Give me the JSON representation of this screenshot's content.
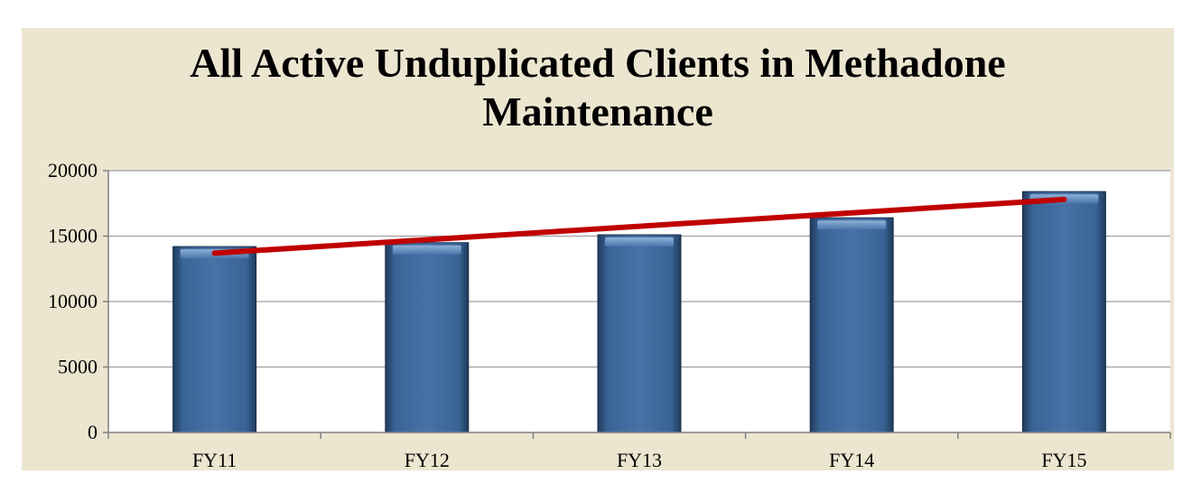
{
  "chart_data": {
    "type": "bar",
    "title_lines": [
      "All Active Unduplicated Clients in Methadone",
      "Maintenance"
    ],
    "categories": [
      "FY11",
      "FY12",
      "FY13",
      "FY14",
      "FY15"
    ],
    "values": [
      14200,
      14500,
      15100,
      16400,
      18400
    ],
    "trendline": {
      "type": "linear",
      "start": 13700,
      "end": 17800
    },
    "yticks": [
      "0",
      "5000",
      "10000",
      "15000",
      "20000"
    ],
    "ylim": [
      0,
      20000
    ],
    "grid": true,
    "legend": "none",
    "colors": {
      "bar": "#3a6496",
      "bar_dark": "#1f3a5c",
      "bar_light": "#7fa0c8",
      "trendline": "#c00000",
      "plot_bg": "#ffffff",
      "frame_bg": "#ece6d0",
      "grid": "#a0a0a0"
    }
  }
}
